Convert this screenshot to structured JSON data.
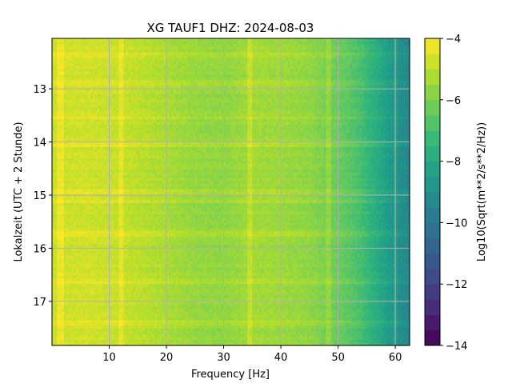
{
  "chart_data": {
    "type": "heatmap",
    "title": "XG TAUF1  DHZ: 2024-08-03",
    "xlabel": "Frequency [Hz]",
    "ylabel": "Lokalzeit (UTC + 2 Stunde)",
    "colorbar_label": "Log10(Sqrt(m**2/s**2/Hz))",
    "xlim": [
      0,
      62.5
    ],
    "ylim": [
      17.83,
      12.05
    ],
    "x_ticks": [
      10,
      20,
      30,
      40,
      50,
      60
    ],
    "y_ticks": [
      13,
      14,
      15,
      16,
      17
    ],
    "colorbar_range": [
      -14,
      -4
    ],
    "colorbar_ticks": [
      -4,
      -6,
      -8,
      -10,
      -12,
      -14
    ],
    "colormap": "viridis",
    "grid": true,
    "profile_frequency_hz": [
      0,
      5,
      10,
      15,
      20,
      25,
      30,
      35,
      40,
      45,
      50,
      52,
      54,
      56,
      58,
      60,
      62.5
    ],
    "profile_level": [
      -4.8,
      -4.7,
      -4.8,
      -5.0,
      -5.3,
      -5.6,
      -5.7,
      -5.4,
      -5.5,
      -5.7,
      -6.3,
      -6.6,
      -7.0,
      -7.6,
      -8.2,
      -8.9,
      -9.3
    ],
    "bright_lines_hz": [
      1.5,
      12,
      34.5,
      48.5,
      60
    ],
    "bright_times_h": [
      12.35,
      12.9,
      13.55,
      14.05,
      14.95,
      15.12,
      15.72,
      16.62,
      17.4
    ]
  }
}
